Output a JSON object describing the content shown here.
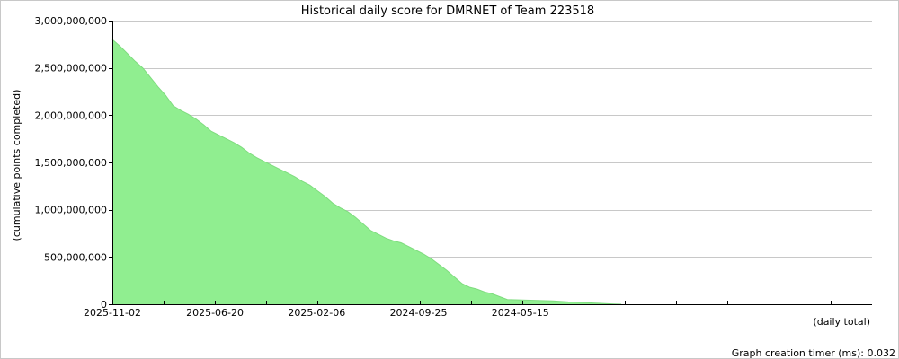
{
  "chart_data": {
    "type": "area",
    "title": "Historical daily score for DMRNET of Team 223518",
    "xlabel": "(daily total)",
    "ylabel": "(cumulative points completed)",
    "footer": "Graph creation timer (ms): 0.032",
    "x_tick_labels": [
      "2025-11-02",
      "2025-06-20",
      "2025-02-06",
      "2024-09-25",
      "2024-05-15"
    ],
    "y_tick_labels": [
      "0",
      "500,000,000",
      "1,000,000,000",
      "1,500,000,000",
      "2,000,000,000",
      "2,500,000,000",
      "3,000,000,000"
    ],
    "y_ticks": [
      0,
      500000000,
      1000000000,
      1500000000,
      2000000000,
      2500000000,
      3000000000
    ],
    "ylim": [
      0,
      3000000000
    ],
    "x_order": "newest-to-oldest (left to right)",
    "x_span_days": 1000,
    "x_tick_days_ago": [
      0,
      135,
      269,
      403,
      537
    ],
    "grid": true,
    "fill_color": "#90ee90",
    "series": [
      {
        "points": [
          [
            0,
            2800000000
          ],
          [
            10,
            2730000000
          ],
          [
            20,
            2650000000
          ],
          [
            30,
            2570000000
          ],
          [
            40,
            2500000000
          ],
          [
            50,
            2400000000
          ],
          [
            60,
            2300000000
          ],
          [
            70,
            2210000000
          ],
          [
            80,
            2100000000
          ],
          [
            90,
            2050000000
          ],
          [
            100,
            2010000000
          ],
          [
            110,
            1960000000
          ],
          [
            120,
            1900000000
          ],
          [
            130,
            1830000000
          ],
          [
            140,
            1790000000
          ],
          [
            150,
            1750000000
          ],
          [
            160,
            1710000000
          ],
          [
            170,
            1660000000
          ],
          [
            180,
            1600000000
          ],
          [
            190,
            1550000000
          ],
          [
            200,
            1510000000
          ],
          [
            210,
            1470000000
          ],
          [
            220,
            1430000000
          ],
          [
            230,
            1390000000
          ],
          [
            240,
            1350000000
          ],
          [
            250,
            1300000000
          ],
          [
            260,
            1260000000
          ],
          [
            270,
            1200000000
          ],
          [
            280,
            1140000000
          ],
          [
            290,
            1070000000
          ],
          [
            300,
            1020000000
          ],
          [
            310,
            980000000
          ],
          [
            320,
            920000000
          ],
          [
            330,
            850000000
          ],
          [
            340,
            780000000
          ],
          [
            350,
            740000000
          ],
          [
            360,
            700000000
          ],
          [
            370,
            670000000
          ],
          [
            380,
            650000000
          ],
          [
            390,
            610000000
          ],
          [
            400,
            570000000
          ],
          [
            410,
            530000000
          ],
          [
            420,
            480000000
          ],
          [
            430,
            420000000
          ],
          [
            440,
            360000000
          ],
          [
            450,
            290000000
          ],
          [
            460,
            220000000
          ],
          [
            470,
            180000000
          ],
          [
            480,
            160000000
          ],
          [
            490,
            130000000
          ],
          [
            500,
            110000000
          ],
          [
            510,
            80000000
          ],
          [
            520,
            50000000
          ],
          [
            540,
            45000000
          ],
          [
            560,
            40000000
          ],
          [
            580,
            35000000
          ],
          [
            600,
            25000000
          ],
          [
            620,
            18000000
          ],
          [
            640,
            10000000
          ],
          [
            660,
            3000000
          ],
          [
            670,
            0
          ]
        ]
      }
    ]
  }
}
